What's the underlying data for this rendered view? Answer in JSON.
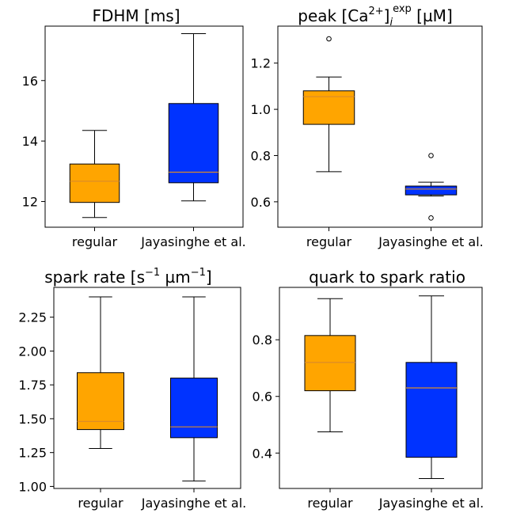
{
  "chart_data": [
    {
      "type": "box",
      "title": "FDHM [ms]",
      "categories": [
        "regular",
        "Jayasinghe et al."
      ],
      "ylim": [
        11.15,
        17.8
      ],
      "yticks": [
        12,
        14,
        16
      ],
      "ytick_labels": [
        "12",
        "14",
        "16"
      ],
      "boxes": [
        {
          "color": "#FFA500",
          "whisker_low": 11.47,
          "q1": 11.97,
          "median": 12.67,
          "q3": 13.24,
          "whisker_high": 14.35,
          "fliers": []
        },
        {
          "color": "#0033FF",
          "whisker_low": 12.02,
          "q1": 12.62,
          "median": 12.97,
          "q3": 15.24,
          "whisker_high": 17.55,
          "fliers": []
        }
      ]
    },
    {
      "type": "box",
      "title_main": "peak [Ca",
      "title_sup1": "2+",
      "title_mid": "]",
      "title_sub": "i",
      "title_sup2": "exp",
      "title_end": " [µM]",
      "categories": [
        "regular",
        "Jayasinghe et al."
      ],
      "ylim": [
        0.49,
        1.36
      ],
      "yticks": [
        0.6,
        0.8,
        1.0,
        1.2
      ],
      "ytick_labels": [
        "0.6",
        "0.8",
        "1.0",
        "1.2"
      ],
      "boxes": [
        {
          "color": "#FFA500",
          "whisker_low": 0.73,
          "q1": 0.935,
          "median": 1.055,
          "q3": 1.08,
          "whisker_high": 1.14,
          "fliers": [
            1.305
          ]
        },
        {
          "color": "#0033FF",
          "whisker_low": 0.625,
          "q1": 0.63,
          "median": 0.655,
          "q3": 0.668,
          "whisker_high": 0.685,
          "fliers": [
            0.8,
            0.53
          ]
        }
      ]
    },
    {
      "type": "box",
      "title_main": "spark rate [s",
      "title_sup1": "−1",
      "title_mid": " µm",
      "title_sup2": "−1",
      "title_end": "]",
      "categories": [
        "regular",
        "Jayasinghe et al."
      ],
      "ylim": [
        0.985,
        2.47
      ],
      "yticks": [
        1.0,
        1.25,
        1.5,
        1.75,
        2.0,
        2.25
      ],
      "ytick_labels": [
        "1.00",
        "1.25",
        "1.50",
        "1.75",
        "2.00",
        "2.25"
      ],
      "boxes": [
        {
          "color": "#FFA500",
          "whisker_low": 1.28,
          "q1": 1.42,
          "median": 1.48,
          "q3": 1.84,
          "whisker_high": 2.4,
          "fliers": []
        },
        {
          "color": "#0033FF",
          "whisker_low": 1.04,
          "q1": 1.36,
          "median": 1.44,
          "q3": 1.8,
          "whisker_high": 2.4,
          "fliers": []
        }
      ]
    },
    {
      "type": "box",
      "title": "quark to spark ratio",
      "categories": [
        "regular",
        "Jayasinghe et al."
      ],
      "ylim": [
        0.275,
        0.985
      ],
      "yticks": [
        0.4,
        0.6,
        0.8
      ],
      "ytick_labels": [
        "0.4",
        "0.6",
        "0.8"
      ],
      "boxes": [
        {
          "color": "#FFA500",
          "whisker_low": 0.475,
          "q1": 0.62,
          "median": 0.72,
          "q3": 0.815,
          "whisker_high": 0.945,
          "fliers": []
        },
        {
          "color": "#0033FF",
          "whisker_low": 0.31,
          "q1": 0.385,
          "median": 0.63,
          "q3": 0.72,
          "whisker_high": 0.955,
          "fliers": []
        }
      ]
    }
  ]
}
